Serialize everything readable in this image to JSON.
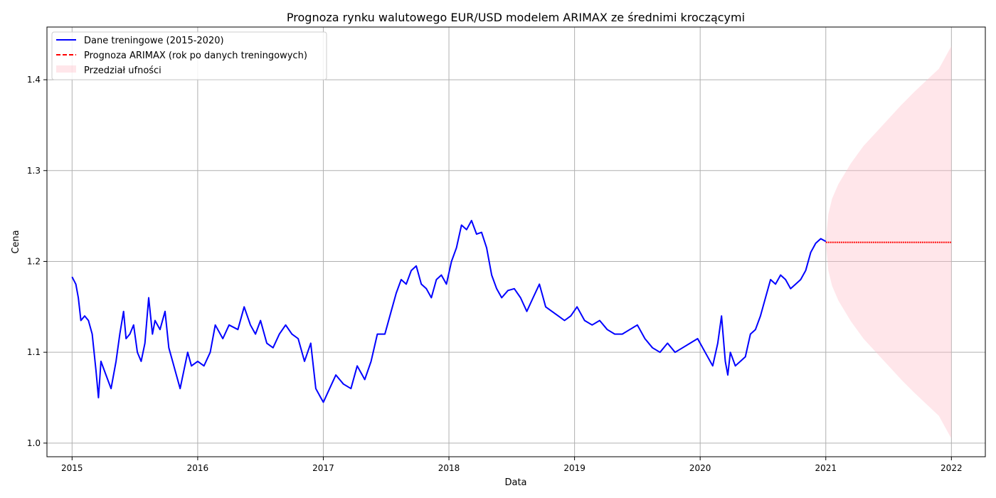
{
  "chart_data": {
    "type": "line",
    "title": "Prognoza rynku walutowego EUR/USD modelem ARIMAX ze średnimi kroczącymi",
    "xlabel": "Data",
    "ylabel": "Cena",
    "xlim": [
      2014.8,
      2022.27
    ],
    "ylim": [
      0.985,
      1.458
    ],
    "x_ticks": [
      2015,
      2016,
      2017,
      2018,
      2019,
      2020,
      2021,
      2022
    ],
    "x_tick_labels": [
      "2015",
      "2016",
      "2017",
      "2018",
      "2019",
      "2020",
      "2021",
      "2022"
    ],
    "y_ticks": [
      1.0,
      1.1,
      1.2,
      1.3,
      1.4
    ],
    "y_tick_labels": [
      "1.0",
      "1.1",
      "1.2",
      "1.3",
      "1.4"
    ],
    "grid": true,
    "legend_position": "top-left",
    "colors": {
      "training": "#0000ff",
      "forecast": "#ff0000",
      "interval": "#ffc0cb"
    },
    "series": [
      {
        "name": "Dane treningowe (2015-2020)",
        "style": "solid",
        "x": [
          2015.0,
          2015.03,
          2015.05,
          2015.07,
          2015.1,
          2015.13,
          2015.16,
          2015.19,
          2015.21,
          2015.23,
          2015.27,
          2015.31,
          2015.35,
          2015.38,
          2015.41,
          2015.43,
          2015.46,
          2015.49,
          2015.52,
          2015.55,
          2015.58,
          2015.61,
          2015.64,
          2015.66,
          2015.7,
          2015.74,
          2015.77,
          2015.8,
          2015.83,
          2015.86,
          2015.89,
          2015.92,
          2015.95,
          2016.0,
          2016.05,
          2016.1,
          2016.14,
          2016.2,
          2016.25,
          2016.32,
          2016.37,
          2016.42,
          2016.46,
          2016.5,
          2016.55,
          2016.6,
          2016.65,
          2016.7,
          2016.75,
          2016.8,
          2016.85,
          2016.9,
          2016.94,
          2016.98,
          2017.0,
          2017.05,
          2017.1,
          2017.16,
          2017.22,
          2017.27,
          2017.33,
          2017.38,
          2017.43,
          2017.49,
          2017.54,
          2017.58,
          2017.62,
          2017.66,
          2017.7,
          2017.74,
          2017.78,
          2017.82,
          2017.86,
          2017.9,
          2017.94,
          2017.98,
          2018.02,
          2018.06,
          2018.1,
          2018.14,
          2018.18,
          2018.22,
          2018.26,
          2018.3,
          2018.34,
          2018.38,
          2018.42,
          2018.47,
          2018.52,
          2018.57,
          2018.62,
          2018.67,
          2018.72,
          2018.77,
          2018.82,
          2018.87,
          2018.92,
          2018.97,
          2019.02,
          2019.08,
          2019.14,
          2019.2,
          2019.26,
          2019.32,
          2019.38,
          2019.44,
          2019.5,
          2019.56,
          2019.62,
          2019.68,
          2019.74,
          2019.8,
          2019.86,
          2019.92,
          2019.98,
          2020.04,
          2020.1,
          2020.14,
          2020.17,
          2020.2,
          2020.22,
          2020.24,
          2020.28,
          2020.32,
          2020.36,
          2020.4,
          2020.44,
          2020.48,
          2020.52,
          2020.56,
          2020.6,
          2020.64,
          2020.68,
          2020.72,
          2020.76,
          2020.8,
          2020.84,
          2020.88,
          2020.92,
          2020.96,
          2021.0
        ],
        "values": [
          1.183,
          1.175,
          1.16,
          1.135,
          1.14,
          1.135,
          1.12,
          1.08,
          1.05,
          1.09,
          1.075,
          1.06,
          1.09,
          1.12,
          1.145,
          1.115,
          1.12,
          1.13,
          1.1,
          1.09,
          1.11,
          1.16,
          1.12,
          1.135,
          1.125,
          1.145,
          1.105,
          1.09,
          1.075,
          1.06,
          1.08,
          1.1,
          1.085,
          1.09,
          1.085,
          1.1,
          1.13,
          1.115,
          1.13,
          1.125,
          1.15,
          1.13,
          1.12,
          1.135,
          1.11,
          1.105,
          1.12,
          1.13,
          1.12,
          1.115,
          1.09,
          1.11,
          1.06,
          1.05,
          1.045,
          1.06,
          1.075,
          1.065,
          1.06,
          1.085,
          1.07,
          1.09,
          1.12,
          1.12,
          1.145,
          1.165,
          1.18,
          1.175,
          1.19,
          1.195,
          1.175,
          1.17,
          1.16,
          1.18,
          1.185,
          1.175,
          1.2,
          1.215,
          1.24,
          1.235,
          1.245,
          1.23,
          1.232,
          1.215,
          1.185,
          1.17,
          1.16,
          1.168,
          1.17,
          1.16,
          1.145,
          1.16,
          1.175,
          1.15,
          1.145,
          1.14,
          1.135,
          1.14,
          1.15,
          1.135,
          1.13,
          1.135,
          1.125,
          1.12,
          1.12,
          1.125,
          1.13,
          1.115,
          1.105,
          1.1,
          1.11,
          1.1,
          1.105,
          1.11,
          1.115,
          1.1,
          1.085,
          1.11,
          1.14,
          1.09,
          1.075,
          1.1,
          1.085,
          1.09,
          1.095,
          1.12,
          1.125,
          1.14,
          1.16,
          1.18,
          1.175,
          1.185,
          1.18,
          1.17,
          1.175,
          1.18,
          1.19,
          1.21,
          1.22,
          1.225,
          1.222
        ]
      },
      {
        "name": "Prognoza ARIMAX (rok po danych treningowych)",
        "style": "dashed",
        "x": [
          2021.0,
          2022.0
        ],
        "values": [
          1.221,
          1.221
        ]
      }
    ],
    "interval": {
      "name": "Przedział ufności",
      "x": [
        2021.0,
        2021.02,
        2021.05,
        2021.1,
        2021.2,
        2021.3,
        2021.4,
        2021.5,
        2021.6,
        2021.7,
        2021.8,
        2021.9,
        2022.0
      ],
      "lower": [
        1.221,
        1.19,
        1.173,
        1.157,
        1.134,
        1.115,
        1.1,
        1.085,
        1.07,
        1.056,
        1.043,
        1.03,
        1.005
      ],
      "upper": [
        1.221,
        1.252,
        1.269,
        1.285,
        1.308,
        1.327,
        1.342,
        1.357,
        1.372,
        1.386,
        1.399,
        1.412,
        1.437
      ]
    }
  }
}
